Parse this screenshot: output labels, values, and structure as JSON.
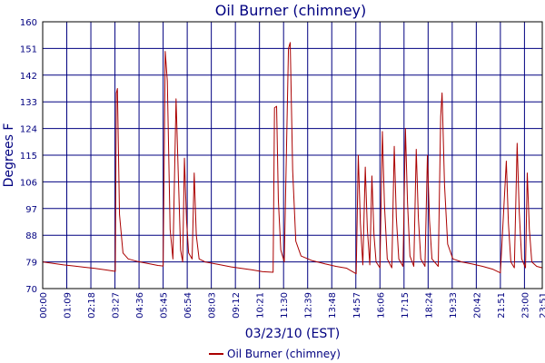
{
  "chart_data": {
    "type": "line",
    "title": "Oil Burner (chimney)",
    "xlabel": "03/23/10 (EST)",
    "ylabel": "Degrees F",
    "ylim": [
      70,
      160
    ],
    "y_ticks": [
      "70",
      "79",
      "88",
      "97",
      "106",
      "115",
      "124",
      "133",
      "142",
      "151",
      "160"
    ],
    "x_ticks": [
      "00:00",
      "01:09",
      "02:18",
      "03:27",
      "04:36",
      "05:45",
      "06:54",
      "08:03",
      "09:12",
      "10:21",
      "11:30",
      "12:39",
      "13:48",
      "14:57",
      "16:06",
      "17:15",
      "18:24",
      "19:33",
      "20:42",
      "21:51",
      "23:00",
      "23:51"
    ],
    "xlim": [
      "00:00",
      "23:51"
    ],
    "grid": true,
    "legend_position": "bottom",
    "series": [
      {
        "name": "Oil Burner (chimney)",
        "color": "#aa0000",
        "points": [
          [
            "00:00",
            79.0
          ],
          [
            "00:30",
            78.5
          ],
          [
            "01:00",
            78.0
          ],
          [
            "01:30",
            77.6
          ],
          [
            "02:00",
            77.2
          ],
          [
            "02:30",
            76.8
          ],
          [
            "03:00",
            76.3
          ],
          [
            "03:28",
            75.8
          ],
          [
            "03:31",
            136.0
          ],
          [
            "03:34",
            137.5
          ],
          [
            "03:40",
            95.0
          ],
          [
            "03:50",
            82.0
          ],
          [
            "04:05",
            80.0
          ],
          [
            "04:30",
            79.2
          ],
          [
            "05:00",
            78.5
          ],
          [
            "05:30",
            77.8
          ],
          [
            "05:45",
            77.6
          ],
          [
            "05:51",
            150.0
          ],
          [
            "05:57",
            140.0
          ],
          [
            "06:05",
            90.0
          ],
          [
            "06:13",
            80.0
          ],
          [
            "06:22",
            134.0
          ],
          [
            "06:28",
            110.0
          ],
          [
            "06:35",
            83.0
          ],
          [
            "06:41",
            79.0
          ],
          [
            "06:46",
            114.0
          ],
          [
            "06:52",
            93.0
          ],
          [
            "06:58",
            82.0
          ],
          [
            "07:08",
            80.0
          ],
          [
            "07:14",
            109.0
          ],
          [
            "07:20",
            88.0
          ],
          [
            "07:28",
            80.0
          ],
          [
            "07:45",
            79.0
          ],
          [
            "08:30",
            78.0
          ],
          [
            "09:00",
            77.3
          ],
          [
            "09:30",
            76.8
          ],
          [
            "10:00",
            76.3
          ],
          [
            "10:30",
            75.7
          ],
          [
            "11:00",
            75.5
          ],
          [
            "11:04",
            131.0
          ],
          [
            "11:10",
            131.5
          ],
          [
            "11:15",
            100.0
          ],
          [
            "11:22",
            83.0
          ],
          [
            "11:32",
            79.0
          ],
          [
            "11:44",
            151.0
          ],
          [
            "11:49",
            153.0
          ],
          [
            "11:56",
            110.0
          ],
          [
            "12:05",
            86.0
          ],
          [
            "12:20",
            81.0
          ],
          [
            "12:50",
            79.5
          ],
          [
            "13:30",
            78.3
          ],
          [
            "14:00",
            77.5
          ],
          [
            "14:30",
            76.9
          ],
          [
            "14:58",
            75.0
          ],
          [
            "15:04",
            115.0
          ],
          [
            "15:10",
            92.0
          ],
          [
            "15:17",
            78.0
          ],
          [
            "15:24",
            111.0
          ],
          [
            "15:30",
            90.0
          ],
          [
            "15:37",
            78.0
          ],
          [
            "15:43",
            108.0
          ],
          [
            "15:49",
            88.0
          ],
          [
            "15:55",
            79.0
          ],
          [
            "16:06",
            77.0
          ],
          [
            "16:13",
            123.0
          ],
          [
            "16:19",
            98.0
          ],
          [
            "16:27",
            80.0
          ],
          [
            "16:40",
            77.0
          ],
          [
            "16:47",
            118.0
          ],
          [
            "16:53",
            94.0
          ],
          [
            "17:00",
            80.0
          ],
          [
            "17:12",
            77.5
          ],
          [
            "17:19",
            124.0
          ],
          [
            "17:25",
            99.0
          ],
          [
            "17:32",
            81.0
          ],
          [
            "17:43",
            77.5
          ],
          [
            "17:50",
            117.0
          ],
          [
            "17:56",
            94.0
          ],
          [
            "18:03",
            80.0
          ],
          [
            "18:15",
            77.5
          ],
          [
            "18:22",
            115.0
          ],
          [
            "18:28",
            93.0
          ],
          [
            "18:35",
            80.0
          ],
          [
            "18:53",
            77.5
          ],
          [
            "19:00",
            128.0
          ],
          [
            "19:04",
            136.0
          ],
          [
            "19:11",
            105.0
          ],
          [
            "19:20",
            85.0
          ],
          [
            "19:35",
            80.0
          ],
          [
            "20:00",
            79.0
          ],
          [
            "20:30",
            78.3
          ],
          [
            "21:00",
            77.5
          ],
          [
            "21:30",
            76.5
          ],
          [
            "21:51",
            75.3
          ],
          [
            "22:08",
            113.0
          ],
          [
            "22:14",
            92.0
          ],
          [
            "22:21",
            79.0
          ],
          [
            "22:31",
            77.0
          ],
          [
            "22:39",
            119.0
          ],
          [
            "22:45",
            96.0
          ],
          [
            "22:52",
            80.0
          ],
          [
            "23:03",
            77.0
          ],
          [
            "23:08",
            109.0
          ],
          [
            "23:14",
            90.0
          ],
          [
            "23:21",
            79.0
          ],
          [
            "23:35",
            77.5
          ],
          [
            "23:51",
            77.0
          ]
        ]
      }
    ]
  }
}
